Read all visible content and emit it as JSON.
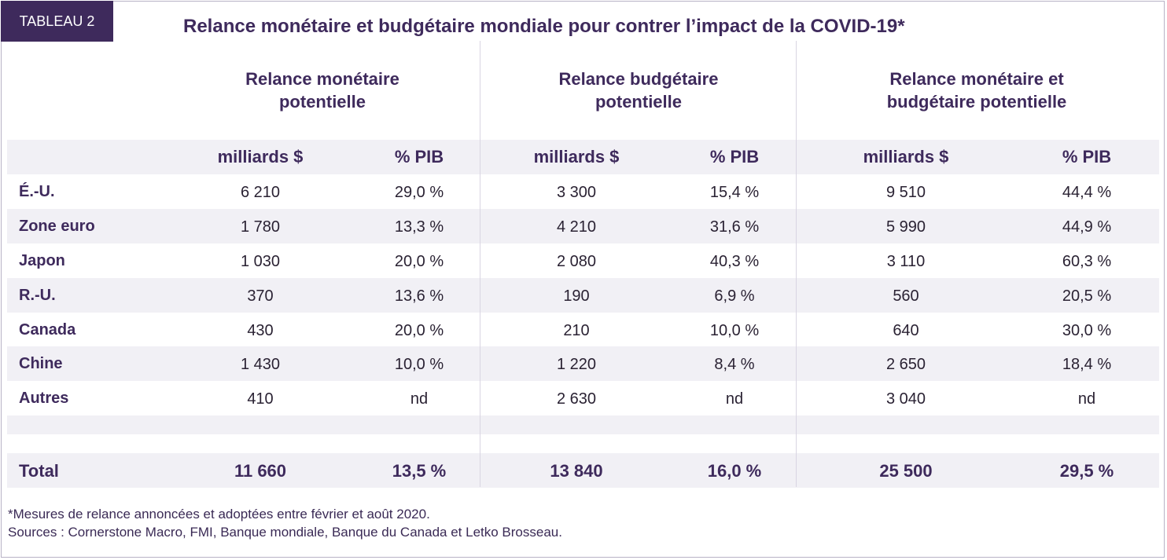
{
  "tag": "TABLEAU 2",
  "title": "Relance monétaire et budgétaire mondiale pour contrer l’impact de la COVID-19*",
  "groups": [
    {
      "line1": "Relance monétaire",
      "line2": "potentielle"
    },
    {
      "line1": "Relance budgétaire",
      "line2": "potentielle"
    },
    {
      "line1": "Relance monétaire et",
      "line2": "budgétaire potentielle"
    }
  ],
  "units": {
    "amount": "milliards $",
    "pct": "% PIB"
  },
  "rows": [
    {
      "label": "É.-U.",
      "values": [
        "6 210",
        "29,0 %",
        "3 300",
        "15,4 %",
        "9 510",
        "44,4 %"
      ]
    },
    {
      "label": "Zone euro",
      "values": [
        "1 780",
        "13,3 %",
        "4 210",
        "31,6 %",
        "5 990",
        "44,9 %"
      ]
    },
    {
      "label": "Japon",
      "values": [
        "1 030",
        "20,0 %",
        "2 080",
        "40,3 %",
        "3 110",
        "60,3 %"
      ]
    },
    {
      "label": "R.-U.",
      "values": [
        "370",
        "13,6 %",
        "190",
        "6,9 %",
        "560",
        "20,5 %"
      ]
    },
    {
      "label": "Canada",
      "values": [
        "430",
        "20,0 %",
        "210",
        "10,0 %",
        "640",
        "30,0 %"
      ]
    },
    {
      "label": "Chine",
      "values": [
        "1 430",
        "10,0 %",
        "1 220",
        "8,4 %",
        "2 650",
        "18,4 %"
      ]
    },
    {
      "label": "Autres",
      "values": [
        "410",
        "nd",
        "2 630",
        "nd",
        "3 040",
        "nd"
      ]
    }
  ],
  "total": {
    "label": "Total",
    "values": [
      "11 660",
      "13,5 %",
      "13 840",
      "16,0 %",
      "25 500",
      "29,5 %"
    ]
  },
  "footnotes": {
    "note": "*Mesures de relance annoncées et adoptées entre février et août 2020.",
    "sources": "Sources : Cornerstone Macro, FMI, Banque mondiale, Banque du Canada et Letko Brosseau."
  }
}
